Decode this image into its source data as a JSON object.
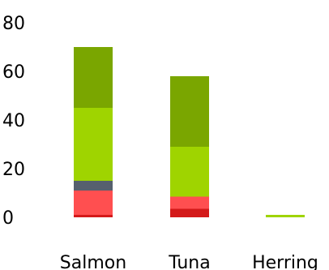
{
  "chart_data": {
    "type": "bar",
    "stacked": true,
    "title": "",
    "xlabel": "",
    "ylabel": "",
    "ylim": [
      0,
      80
    ],
    "y_ticks": [
      "0",
      "20",
      "40",
      "60",
      "80"
    ],
    "grid": false,
    "legend": "none",
    "categories": [
      "Salmon",
      "Tuna",
      "Herring"
    ],
    "series": [
      {
        "color": "#d41a1a",
        "values": [
          1,
          3.5,
          0
        ]
      },
      {
        "color": "#ff4f50",
        "values": [
          10,
          5,
          0
        ]
      },
      {
        "color": "#56606e",
        "values": [
          4,
          0,
          0
        ]
      },
      {
        "color": "#9fd400",
        "values": [
          30,
          20.5,
          1
        ]
      },
      {
        "color": "#7aa600",
        "values": [
          25,
          29,
          0
        ]
      }
    ]
  }
}
